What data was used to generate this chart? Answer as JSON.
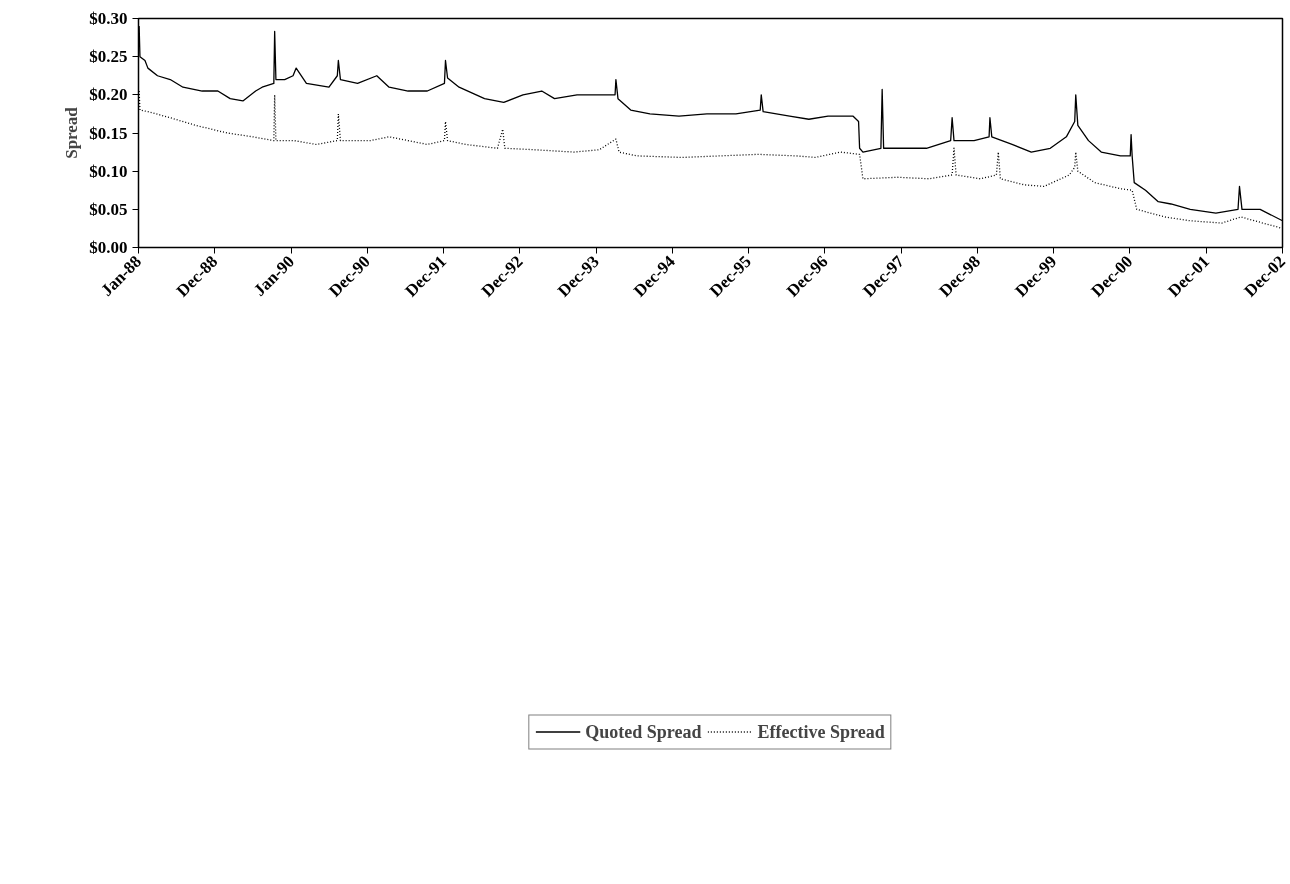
{
  "chart_data": {
    "type": "line",
    "ylabel": "Spread",
    "legend": "bottom",
    "grid": false,
    "xlim": [
      "1988-01-01",
      "2002-12-31"
    ],
    "xticks": [
      {
        "value": "1988-01-01",
        "label": "Jan-88"
      },
      {
        "value": "1988-12-31",
        "label": "Dec-88"
      },
      {
        "value": "1990-01-02",
        "label": "Jan-90"
      },
      {
        "value": "1990-12-31",
        "label": "Dec-90"
      },
      {
        "value": "1991-12-31",
        "label": "Dec-91"
      },
      {
        "value": "1992-12-31",
        "label": "Dec-92"
      },
      {
        "value": "1993-12-31",
        "label": "Dec-93"
      },
      {
        "value": "1994-12-30",
        "label": "Dec-94"
      },
      {
        "value": "1995-12-29",
        "label": "Dec-95"
      },
      {
        "value": "1996-12-31",
        "label": "Dec-96"
      },
      {
        "value": "1997-12-31",
        "label": "Dec-97"
      },
      {
        "value": "1998-12-31",
        "label": "Dec-98"
      },
      {
        "value": "1999-12-31",
        "label": "Dec-99"
      },
      {
        "value": "2000-12-29",
        "label": "Dec-00"
      },
      {
        "value": "2001-12-31",
        "label": "Dec-01"
      },
      {
        "value": "2002-12-31",
        "label": "Dec-02"
      }
    ],
    "ylim": [
      0,
      0.3
    ],
    "yticks": [
      {
        "value": 0,
        "label": "$0.00"
      },
      {
        "value": 0.05,
        "label": "$0.05"
      },
      {
        "value": 0.1,
        "label": "$0.10"
      },
      {
        "value": 0.15,
        "label": "$0.15"
      },
      {
        "value": 0.2,
        "label": "$0.20"
      },
      {
        "value": 0.25,
        "label": "$0.25"
      },
      {
        "value": 0.3,
        "label": "$0.30"
      }
    ],
    "series": [
      {
        "name": "Quoted Spread",
        "color": "#000000",
        "line_style": "solid",
        "x": [
          "1988-01-04",
          "1988-01-08",
          "1988-02-01",
          "1988-02-15",
          "1988-04-01",
          "1988-06-01",
          "1988-08-01",
          "1988-11-01",
          "1989-01-15",
          "1989-03-15",
          "1989-05-15",
          "1989-07-15",
          "1989-08-15",
          "1989-10-10",
          "1989-10-14",
          "1989-10-20",
          "1989-12-01",
          "1990-01-10",
          "1990-01-25",
          "1990-03-15",
          "1990-07-01",
          "1990-08-10",
          "1990-08-15",
          "1990-08-25",
          "1990-11-15",
          "1991-02-15",
          "1991-04-15",
          "1991-07-15",
          "1991-10-15",
          "1992-01-05",
          "1992-01-10",
          "1992-01-20",
          "1992-03-15",
          "1992-07-15",
          "1992-10-15",
          "1993-01-15",
          "1993-04-15",
          "1993-06-15",
          "1993-10-01",
          "1994-01-10",
          "1994-04-01",
          "1994-04-05",
          "1994-04-15",
          "1994-06-15",
          "1994-09-15",
          "1995-02-01",
          "1995-06-15",
          "1995-11-01",
          "1996-02-25",
          "1996-03-01",
          "1996-03-10",
          "1996-07-15",
          "1996-10-15",
          "1997-01-15",
          "1997-05-15",
          "1997-06-10",
          "1997-06-15",
          "1997-07-01",
          "1997-09-25",
          "1997-10-01",
          "1997-10-08",
          "1997-12-15",
          "1998-05-01",
          "1998-08-25",
          "1998-09-01",
          "1998-09-10",
          "1998-12-15",
          "1999-02-25",
          "1999-03-01",
          "1999-03-10",
          "1999-06-15",
          "1999-09-15",
          "1999-12-15",
          "2000-03-01",
          "2000-04-10",
          "2000-04-15",
          "2000-04-25",
          "2000-06-15",
          "2000-08-15",
          "2000-11-15",
          "2001-01-01",
          "2001-01-05",
          "2001-01-10",
          "2001-01-20",
          "2001-03-15",
          "2001-05-15",
          "2001-07-15",
          "2001-10-15",
          "2002-02-15",
          "2002-06-01",
          "2002-06-08",
          "2002-06-20",
          "2002-09-15",
          "2002-12-31"
        ],
        "values": [
          0.29,
          0.25,
          0.245,
          0.235,
          0.225,
          0.22,
          0.21,
          0.205,
          0.205,
          0.195,
          0.192,
          0.205,
          0.21,
          0.215,
          0.283,
          0.22,
          0.22,
          0.225,
          0.235,
          0.215,
          0.21,
          0.225,
          0.245,
          0.22,
          0.215,
          0.225,
          0.21,
          0.205,
          0.205,
          0.215,
          0.245,
          0.222,
          0.21,
          0.195,
          0.19,
          0.2,
          0.205,
          0.195,
          0.2,
          0.2,
          0.2,
          0.22,
          0.195,
          0.18,
          0.175,
          0.172,
          0.175,
          0.175,
          0.18,
          0.2,
          0.178,
          0.172,
          0.168,
          0.172,
          0.172,
          0.165,
          0.13,
          0.125,
          0.13,
          0.207,
          0.13,
          0.13,
          0.13,
          0.14,
          0.17,
          0.14,
          0.14,
          0.145,
          0.17,
          0.145,
          0.135,
          0.125,
          0.13,
          0.145,
          0.165,
          0.2,
          0.16,
          0.14,
          0.125,
          0.12,
          0.12,
          0.148,
          0.12,
          0.085,
          0.075,
          0.06,
          0.057,
          0.05,
          0.045,
          0.05,
          0.08,
          0.05,
          0.05,
          0.035
        ]
      },
      {
        "name": "Effective Spread",
        "color": "#000000",
        "line_style": "dotted",
        "x": [
          "1988-01-04",
          "1988-01-08",
          "1988-02-15",
          "1988-06-01",
          "1988-10-01",
          "1989-03-01",
          "1989-07-01",
          "1989-10-10",
          "1989-10-14",
          "1989-10-20",
          "1990-01-15",
          "1990-05-01",
          "1990-08-10",
          "1990-08-15",
          "1990-08-25",
          "1991-01-15",
          "1991-04-15",
          "1991-10-15",
          "1992-01-05",
          "1992-01-10",
          "1992-01-20",
          "1992-04-15",
          "1992-09-15",
          "1992-10-10",
          "1992-10-20",
          "1993-03-15",
          "1993-09-15",
          "1994-01-15",
          "1994-04-05",
          "1994-04-20",
          "1994-07-15",
          "1995-02-15",
          "1995-08-15",
          "1996-02-15",
          "1996-08-15",
          "1996-11-15",
          "1997-03-15",
          "1997-06-15",
          "1997-07-01",
          "1997-12-15",
          "1998-05-15",
          "1998-09-01",
          "1998-09-10",
          "1998-09-20",
          "1999-01-15",
          "1999-04-01",
          "1999-04-10",
          "1999-04-20",
          "1999-08-15",
          "1999-11-15",
          "2000-03-15",
          "2000-04-10",
          "2000-04-15",
          "2000-04-25",
          "2000-07-15",
          "2000-11-15",
          "2001-01-10",
          "2001-02-01",
          "2001-06-15",
          "2001-10-15",
          "2002-03-15",
          "2002-06-15",
          "2002-09-15",
          "2002-12-31"
        ],
        "values": [
          0.205,
          0.18,
          0.178,
          0.17,
          0.16,
          0.15,
          0.145,
          0.14,
          0.2,
          0.14,
          0.14,
          0.135,
          0.14,
          0.175,
          0.14,
          0.14,
          0.145,
          0.135,
          0.14,
          0.165,
          0.14,
          0.135,
          0.13,
          0.155,
          0.13,
          0.128,
          0.125,
          0.128,
          0.142,
          0.125,
          0.12,
          0.118,
          0.12,
          0.122,
          0.12,
          0.118,
          0.125,
          0.122,
          0.09,
          0.092,
          0.09,
          0.095,
          0.13,
          0.095,
          0.09,
          0.095,
          0.125,
          0.09,
          0.082,
          0.08,
          0.095,
          0.105,
          0.125,
          0.1,
          0.085,
          0.077,
          0.075,
          0.05,
          0.04,
          0.035,
          0.032,
          0.04,
          0.033,
          0.025
        ]
      }
    ]
  }
}
